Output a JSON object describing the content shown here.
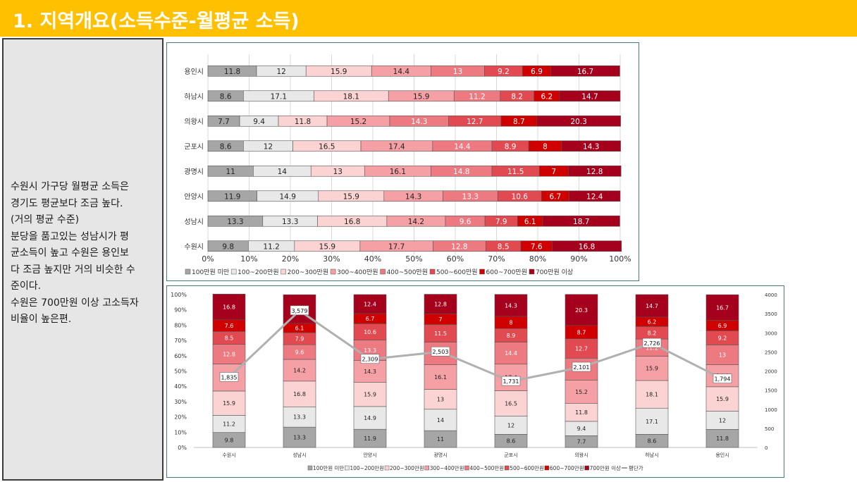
{
  "header": {
    "title": "1. 지역개요(소득수준-월평균 소득)"
  },
  "sidebar": {
    "lines": [
      "수원시 가구당 월평균 소득은",
      "경기도 평균보다 조금 높다.",
      "(거의 평균 수준)",
      "분당을 품고있는 성남시가 평",
      "균소득이 높고 수원은 용인보",
      "다 조금 높지만 거의 비슷한 수",
      "준이다.",
      "수원은 700만원 이상 고소득자",
      "비율이 높은편."
    ]
  },
  "colors": [
    "#a6a6a6",
    "#e8e8e8",
    "#fbd3d3",
    "#f4a0a4",
    "#ec7a80",
    "#e04a50",
    "#d00000",
    "#a5001c"
  ],
  "chart_data": [
    {
      "type": "bar",
      "orientation": "horizontal",
      "stacked": "percent",
      "categories": [
        "용인시",
        "하남시",
        "의왕시",
        "군포시",
        "광명시",
        "안양시",
        "성남시",
        "수원시"
      ],
      "series": [
        {
          "name": "100만원 미만",
          "values": [
            11.8,
            8.6,
            7.7,
            8.6,
            11,
            11.9,
            13.3,
            9.8
          ]
        },
        {
          "name": "100~200만원",
          "values": [
            12,
            17.1,
            9.4,
            12,
            14,
            14.9,
            13.3,
            11.2
          ]
        },
        {
          "name": "200~300만원",
          "values": [
            15.9,
            18.1,
            11.8,
            16.5,
            13,
            15.9,
            16.8,
            15.9
          ]
        },
        {
          "name": "300~400만원",
          "values": [
            14.4,
            15.9,
            15.2,
            17.4,
            16.1,
            14.3,
            14.2,
            17.7
          ]
        },
        {
          "name": "400~500만원",
          "values": [
            13,
            11.2,
            14.3,
            14.4,
            14.8,
            13.3,
            9.6,
            12.8
          ]
        },
        {
          "name": "500~600만원",
          "values": [
            9.2,
            8.2,
            12.7,
            8.9,
            11.5,
            10.6,
            7.9,
            8.5
          ]
        },
        {
          "name": "600~700만원",
          "values": [
            6.9,
            6.2,
            8.7,
            8,
            7,
            6.7,
            6.1,
            7.6
          ]
        },
        {
          "name": "700만원 이상",
          "values": [
            16.7,
            14.7,
            20.3,
            14.3,
            12.8,
            12.4,
            18.7,
            16.8
          ]
        }
      ],
      "xticks": [
        "0%",
        "10%",
        "20%",
        "30%",
        "40%",
        "50%",
        "60%",
        "70%",
        "80%",
        "90%",
        "100%"
      ],
      "xlim": [
        0,
        100
      ],
      "grid": true,
      "legend": "bottom"
    },
    {
      "type": "bar",
      "orientation": "vertical",
      "stacked": "percent",
      "categories": [
        "수원시",
        "성남시",
        "안양시",
        "광명시",
        "군포시",
        "의왕시",
        "하남시",
        "용인시"
      ],
      "series": [
        {
          "name": "100만원 미만",
          "values": [
            9.8,
            13.3,
            11.9,
            11,
            8.6,
            7.7,
            8.6,
            11.8
          ]
        },
        {
          "name": "100~200만원",
          "values": [
            11.2,
            13.3,
            14.9,
            14,
            12,
            9.4,
            17.1,
            12
          ]
        },
        {
          "name": "200~300만원",
          "values": [
            15.9,
            16.8,
            15.9,
            13,
            16.5,
            11.8,
            18.1,
            15.9
          ]
        },
        {
          "name": "300~400만원",
          "values": [
            17.7,
            14.2,
            14.3,
            16.1,
            17.4,
            15.2,
            15.9,
            14.4
          ]
        },
        {
          "name": "400~500만원",
          "values": [
            12.8,
            9.6,
            13.3,
            14.8,
            14.4,
            14.3,
            11.2,
            13
          ]
        },
        {
          "name": "500~600만원",
          "values": [
            8.5,
            7.9,
            10.6,
            11.5,
            8.9,
            12.7,
            8.2,
            9.2
          ]
        },
        {
          "name": "600~700만원",
          "values": [
            7.6,
            6.1,
            6.7,
            7,
            8,
            8.7,
            6.2,
            6.9
          ]
        },
        {
          "name": "700만원 이상",
          "values": [
            16.8,
            18.7,
            12.4,
            12.8,
            14.3,
            20.3,
            14.7,
            16.7
          ]
        }
      ],
      "line": {
        "name": "평단가",
        "values": [
          1835,
          3579,
          2309,
          2503,
          1731,
          2101,
          2726,
          1794
        ],
        "labels": [
          "1,835",
          "3,579",
          "2,309",
          "2,503",
          "1,731",
          "2,101",
          "2,726",
          "1,794"
        ]
      },
      "yticks": [
        "0%",
        "10%",
        "20%",
        "30%",
        "40%",
        "50%",
        "60%",
        "70%",
        "80%",
        "90%",
        "100%"
      ],
      "ylim": [
        0,
        100
      ],
      "y2ticks": [
        "0",
        "500",
        "1000",
        "1500",
        "2000",
        "2500",
        "3000",
        "3500",
        "4000"
      ],
      "y2lim": [
        0,
        4000
      ],
      "legend": "bottom"
    }
  ]
}
